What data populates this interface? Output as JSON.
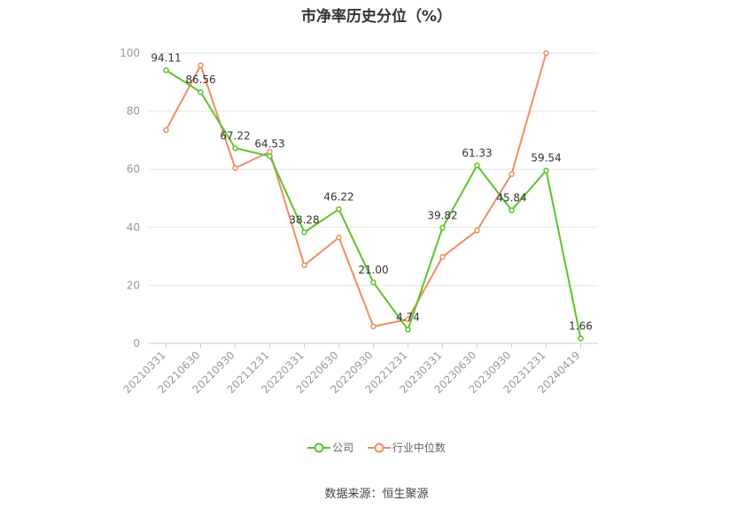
{
  "source_note": "数据来源：恒生聚源",
  "chart_data": {
    "type": "line",
    "title": "市净率历史分位（%）",
    "xlabel": "",
    "ylabel": "",
    "ylim": [
      0,
      100
    ],
    "yticks": [
      0,
      20,
      40,
      60,
      80,
      100
    ],
    "grid": true,
    "legend_position": "bottom",
    "categories": [
      "20210331",
      "20210630",
      "20210930",
      "20211231",
      "20220331",
      "20220630",
      "20220930",
      "20221231",
      "20230331",
      "20230630",
      "20230930",
      "20231231",
      "20240419"
    ],
    "series": [
      {
        "name": "公司",
        "color": "#5ac52a",
        "show_labels": true,
        "values": [
          94.11,
          86.56,
          67.22,
          64.53,
          38.28,
          46.22,
          21.0,
          4.74,
          39.82,
          61.33,
          45.84,
          59.54,
          1.66
        ],
        "labels": [
          "94.11",
          "86.56",
          "67.22",
          "64.53",
          "38.28",
          "46.22",
          "21.00",
          "4.74",
          "39.82",
          "61.33",
          "45.84",
          "59.54",
          "1.66"
        ]
      },
      {
        "name": "行业中位数",
        "color": "#f08c63",
        "show_labels": false,
        "values": [
          73.5,
          95.8,
          60.4,
          66.0,
          26.9,
          36.5,
          5.8,
          8.3,
          29.8,
          38.9,
          58.3,
          100,
          null
        ]
      }
    ]
  }
}
